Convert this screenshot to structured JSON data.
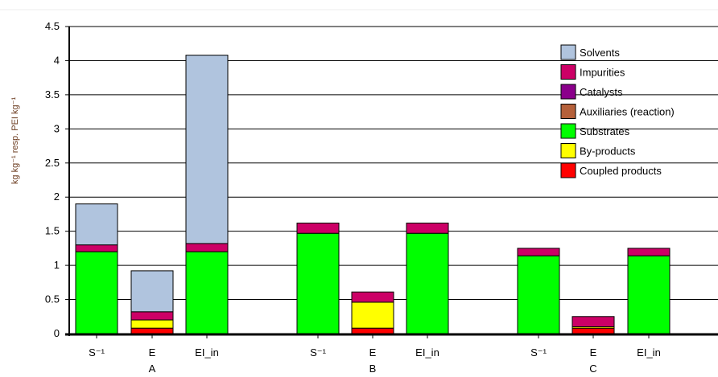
{
  "chart_data": {
    "type": "bar",
    "stacked": true,
    "ylabel": "kg kg⁻¹ resp. PEI kg⁻¹",
    "xlabel": "",
    "ylim": [
      0,
      4.5
    ],
    "y_ticks": [
      "0",
      "0.5",
      "1",
      "1.5",
      "2",
      "2.5",
      "3",
      "3.5",
      "4",
      "4.5"
    ],
    "grid": true,
    "legend_position": "top-right",
    "groups": [
      {
        "label": "A",
        "categories": [
          "S⁻¹",
          "E",
          "EI_in"
        ]
      },
      {
        "label": "B",
        "categories": [
          "S⁻¹",
          "E",
          "EI_in"
        ]
      },
      {
        "label": "C",
        "categories": [
          "S⁻¹",
          "E",
          "EI_in"
        ]
      }
    ],
    "series": [
      {
        "name": "Coupled products",
        "color": "#ff0000",
        "values": [
          0,
          0.08,
          0,
          0,
          0.08,
          0,
          0,
          0.08,
          0
        ]
      },
      {
        "name": "By-products",
        "color": "#ffff00",
        "values": [
          0,
          0.12,
          0,
          0,
          0.38,
          0,
          0,
          0.02,
          0
        ]
      },
      {
        "name": "Substrates",
        "color": "#00ff00",
        "values": [
          1.2,
          0,
          1.2,
          1.47,
          0,
          1.47,
          1.14,
          0,
          1.14
        ]
      },
      {
        "name": "Auxiliaries (reaction)",
        "color": "#b5603a",
        "values": [
          0,
          0,
          0,
          0,
          0,
          0,
          0,
          0,
          0
        ]
      },
      {
        "name": "Catalysts",
        "color": "#8b008b",
        "values": [
          0,
          0,
          0,
          0,
          0,
          0,
          0,
          0,
          0
        ]
      },
      {
        "name": "Impurities",
        "color": "#cc0066",
        "values": [
          0.1,
          0.12,
          0.12,
          0.15,
          0.15,
          0.15,
          0.11,
          0.15,
          0.11
        ]
      },
      {
        "name": "Solvents",
        "color": "#b0c4de",
        "values": [
          0.6,
          0.6,
          2.76,
          0,
          0,
          0,
          0,
          0,
          0
        ]
      }
    ]
  }
}
